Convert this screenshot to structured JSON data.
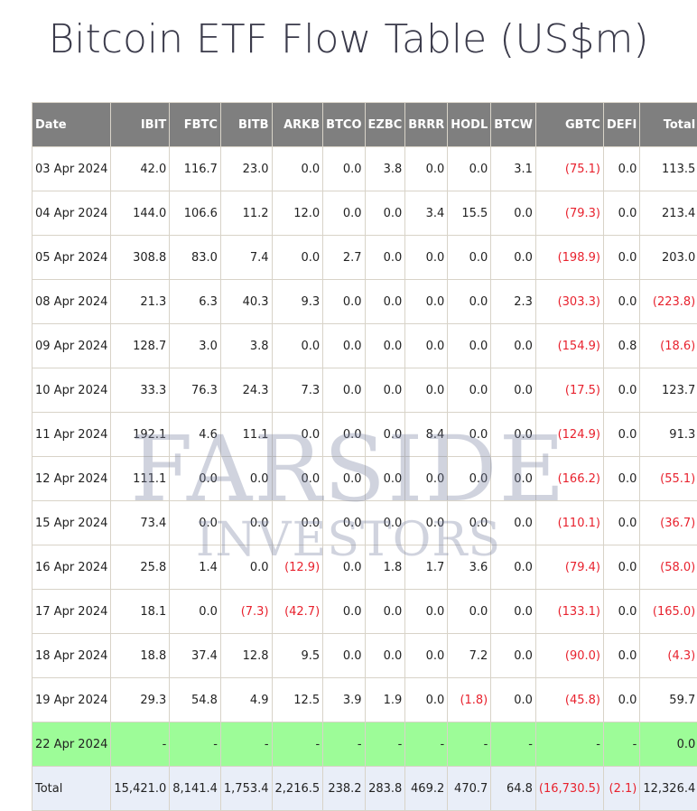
{
  "title": "Bitcoin ETF Flow Table (US$m)",
  "watermark": {
    "line1": "FARSIDE",
    "line2": "INVESTORS"
  },
  "colors": {
    "header_bg": "#7f7f7f",
    "negative": "#e8222e",
    "highlight_row": "#9dfc98",
    "total_row": "#e9eef8"
  },
  "columns": [
    "Date",
    "IBIT",
    "FBTC",
    "BITB",
    "ARKB",
    "BTCO",
    "EZBC",
    "BRRR",
    "HODL",
    "BTCW",
    "GBTC",
    "DEFI",
    "Total"
  ],
  "rows": [
    [
      "03 Apr 2024",
      "42.0",
      "116.7",
      "23.0",
      "0.0",
      "0.0",
      "3.8",
      "0.0",
      "0.0",
      "3.1",
      "(75.1)",
      "0.0",
      "113.5"
    ],
    [
      "04 Apr 2024",
      "144.0",
      "106.6",
      "11.2",
      "12.0",
      "0.0",
      "0.0",
      "3.4",
      "15.5",
      "0.0",
      "(79.3)",
      "0.0",
      "213.4"
    ],
    [
      "05 Apr 2024",
      "308.8",
      "83.0",
      "7.4",
      "0.0",
      "2.7",
      "0.0",
      "0.0",
      "0.0",
      "0.0",
      "(198.9)",
      "0.0",
      "203.0"
    ],
    [
      "08 Apr 2024",
      "21.3",
      "6.3",
      "40.3",
      "9.3",
      "0.0",
      "0.0",
      "0.0",
      "0.0",
      "2.3",
      "(303.3)",
      "0.0",
      "(223.8)"
    ],
    [
      "09 Apr 2024",
      "128.7",
      "3.0",
      "3.8",
      "0.0",
      "0.0",
      "0.0",
      "0.0",
      "0.0",
      "0.0",
      "(154.9)",
      "0.8",
      "(18.6)"
    ],
    [
      "10 Apr 2024",
      "33.3",
      "76.3",
      "24.3",
      "7.3",
      "0.0",
      "0.0",
      "0.0",
      "0.0",
      "0.0",
      "(17.5)",
      "0.0",
      "123.7"
    ],
    [
      "11 Apr 2024",
      "192.1",
      "4.6",
      "11.1",
      "0.0",
      "0.0",
      "0.0",
      "8.4",
      "0.0",
      "0.0",
      "(124.9)",
      "0.0",
      "91.3"
    ],
    [
      "12 Apr 2024",
      "111.1",
      "0.0",
      "0.0",
      "0.0",
      "0.0",
      "0.0",
      "0.0",
      "0.0",
      "0.0",
      "(166.2)",
      "0.0",
      "(55.1)"
    ],
    [
      "15 Apr 2024",
      "73.4",
      "0.0",
      "0.0",
      "0.0",
      "0.0",
      "0.0",
      "0.0",
      "0.0",
      "0.0",
      "(110.1)",
      "0.0",
      "(36.7)"
    ],
    [
      "16 Apr 2024",
      "25.8",
      "1.4",
      "0.0",
      "(12.9)",
      "0.0",
      "1.8",
      "1.7",
      "3.6",
      "0.0",
      "(79.4)",
      "0.0",
      "(58.0)"
    ],
    [
      "17 Apr 2024",
      "18.1",
      "0.0",
      "(7.3)",
      "(42.7)",
      "0.0",
      "0.0",
      "0.0",
      "0.0",
      "0.0",
      "(133.1)",
      "0.0",
      "(165.0)"
    ],
    [
      "18 Apr 2024",
      "18.8",
      "37.4",
      "12.8",
      "9.5",
      "0.0",
      "0.0",
      "0.0",
      "7.2",
      "0.0",
      "(90.0)",
      "0.0",
      "(4.3)"
    ],
    [
      "19 Apr 2024",
      "29.3",
      "54.8",
      "4.9",
      "12.5",
      "3.9",
      "1.9",
      "0.0",
      "(1.8)",
      "0.0",
      "(45.8)",
      "0.0",
      "59.7"
    ],
    [
      "22 Apr 2024",
      "-",
      "-",
      "-",
      "-",
      "-",
      "-",
      "-",
      "-",
      "-",
      "-",
      "-",
      "0.0"
    ]
  ],
  "total_row": [
    "Total",
    "15,421.0",
    "8,141.4",
    "1,753.4",
    "2,216.5",
    "238.2",
    "283.8",
    "469.2",
    "470.7",
    "64.8",
    "(16,730.5)",
    "(2.1)",
    "12,326.4"
  ]
}
